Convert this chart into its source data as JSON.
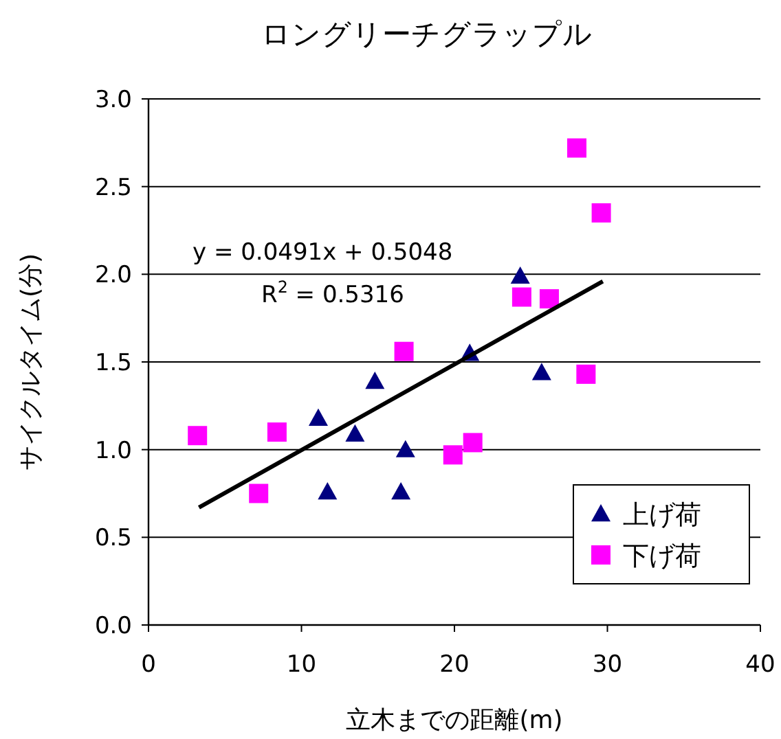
{
  "chart_data": {
    "type": "scatter",
    "title": "ロングリーチグラップル",
    "xlabel": "立木までの距離(m)",
    "ylabel": "サイクルタイム(分)",
    "xlim": [
      0,
      40
    ],
    "xticks": [
      0,
      10,
      20,
      30,
      40
    ],
    "ylim": [
      0,
      3
    ],
    "yticks": [
      {
        "value": 0,
        "label": "0.0"
      },
      {
        "value": 0.5,
        "label": "0.5"
      },
      {
        "value": 1,
        "label": "1.0"
      },
      {
        "value": 1.5,
        "label": "1.5"
      },
      {
        "value": 2,
        "label": "2.0"
      },
      {
        "value": 2.5,
        "label": "2.5"
      },
      {
        "value": 3,
        "label": "3.0"
      }
    ],
    "grid": "y",
    "legend": "bottom right",
    "series": [
      {
        "name": "上げ荷",
        "color": "#000080",
        "marker": "triangle",
        "x": [
          11.1,
          11.7,
          13.5,
          14.8,
          16.8,
          16.5,
          21.0,
          24.3,
          25.7
        ],
        "values": [
          1.18,
          0.76,
          1.09,
          1.39,
          1.0,
          0.76,
          1.55,
          1.99,
          1.44
        ]
      },
      {
        "name": "下げ荷",
        "color": "#ff00ff",
        "marker": "square",
        "x": [
          3.2,
          7.2,
          8.4,
          16.7,
          19.9,
          21.2,
          24.4,
          26.2,
          28.0,
          28.6,
          29.6
        ],
        "values": [
          1.08,
          0.75,
          1.1,
          1.56,
          0.97,
          1.04,
          1.87,
          1.86,
          2.72,
          1.43,
          2.35
        ]
      },
      {
        "type": "line",
        "color": "#000000",
        "marker": "none",
        "x": [
          3.3,
          29.7
        ],
        "values": [
          0.67,
          1.96
        ]
      }
    ],
    "annotations": [
      "y = 0.0491x + 0.5048",
      "R$^{2}$ = 0.5316"
    ]
  }
}
